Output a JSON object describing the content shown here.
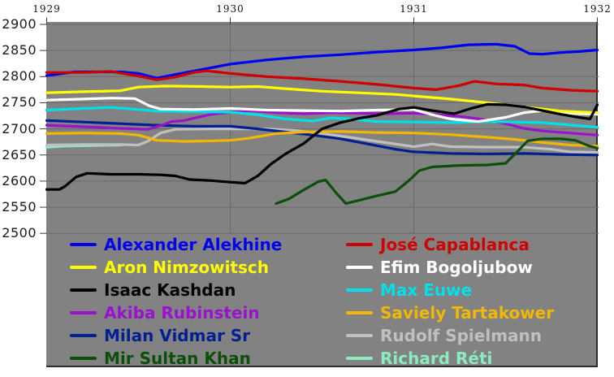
{
  "chart_data": {
    "type": "line",
    "title": "",
    "x_axis": {
      "min": 1929,
      "max": 1932,
      "ticks": [
        "1929",
        "1930",
        "1931",
        "1932"
      ]
    },
    "y_axis": {
      "min": 2500,
      "max": 2900,
      "tick_step": 50,
      "ticks": [
        "2900",
        "2850",
        "2800",
        "2750",
        "2700",
        "2650",
        "2600",
        "2550",
        "2500"
      ]
    },
    "grid": true,
    "colors": {
      "plot_background": "#828282",
      "gridline": "#6a6a6a",
      "border": "#2b2b2b",
      "axis_text": "#1b1b1b"
    },
    "legend": {
      "position": "bottom-inside",
      "left_column": [
        "Alexander Alekhine",
        "Aron Nimzowitsch",
        "Isaac Kashdan",
        "Akiba Rubinstein",
        "Milan Vidmar Sr",
        "Mir Sultan Khan"
      ],
      "right_column": [
        "José Capablanca",
        "Efim Bogoljubow",
        "Max Euwe",
        "Saviely Tartakower",
        "Rudolf Spielmann",
        "Richard Réti"
      ]
    },
    "draw_order": [
      "Richard Réti",
      "Rudolf Spielmann",
      "Milan Vidmar Sr",
      "Saviely Tartakower",
      "Akiba Rubinstein",
      "Max Euwe",
      "Efim Bogoljubow",
      "Aron Nimzowitsch",
      "Mir Sultan Khan",
      "Isaac Kashdan",
      "Alexander Alekhine",
      "José Capablanca"
    ],
    "series": [
      {
        "name": "Alexander Alekhine",
        "color": "#0000EE",
        "points": [
          [
            1929.0,
            2802
          ],
          [
            1929.15,
            2809
          ],
          [
            1929.4,
            2809
          ],
          [
            1929.5,
            2806
          ],
          [
            1929.6,
            2797
          ],
          [
            1929.7,
            2804
          ],
          [
            1929.85,
            2814
          ],
          [
            1930.0,
            2824
          ],
          [
            1930.2,
            2832
          ],
          [
            1930.4,
            2838
          ],
          [
            1930.6,
            2842
          ],
          [
            1930.8,
            2847
          ],
          [
            1931.0,
            2851
          ],
          [
            1931.15,
            2855
          ],
          [
            1931.3,
            2861
          ],
          [
            1931.45,
            2862
          ],
          [
            1931.55,
            2858
          ],
          [
            1931.63,
            2844
          ],
          [
            1931.7,
            2843
          ],
          [
            1931.8,
            2846
          ],
          [
            1931.9,
            2848
          ],
          [
            1932.0,
            2851
          ]
        ]
      },
      {
        "name": "José Capablanca",
        "color": "#CE0000",
        "points": [
          [
            1929.0,
            2808
          ],
          [
            1929.2,
            2808
          ],
          [
            1929.35,
            2810
          ],
          [
            1929.5,
            2801
          ],
          [
            1929.6,
            2794
          ],
          [
            1929.7,
            2799
          ],
          [
            1929.8,
            2808
          ],
          [
            1929.87,
            2811
          ],
          [
            1930.0,
            2806
          ],
          [
            1930.2,
            2800
          ],
          [
            1930.4,
            2796
          ],
          [
            1930.6,
            2791
          ],
          [
            1930.8,
            2785
          ],
          [
            1931.0,
            2778
          ],
          [
            1931.12,
            2775
          ],
          [
            1931.25,
            2783
          ],
          [
            1931.33,
            2791
          ],
          [
            1931.45,
            2786
          ],
          [
            1931.6,
            2784
          ],
          [
            1931.7,
            2778
          ],
          [
            1931.85,
            2774
          ],
          [
            1932.0,
            2772
          ]
        ]
      },
      {
        "name": "Aron Nimzowitsch",
        "color": "#FFFF00",
        "points": [
          [
            1929.0,
            2769
          ],
          [
            1929.2,
            2771
          ],
          [
            1929.4,
            2773
          ],
          [
            1929.5,
            2780
          ],
          [
            1929.65,
            2782
          ],
          [
            1929.85,
            2781
          ],
          [
            1930.0,
            2780
          ],
          [
            1930.15,
            2781
          ],
          [
            1930.3,
            2777
          ],
          [
            1930.5,
            2772
          ],
          [
            1930.7,
            2769
          ],
          [
            1930.9,
            2766
          ],
          [
            1931.0,
            2763
          ],
          [
            1931.2,
            2757
          ],
          [
            1931.4,
            2750
          ],
          [
            1931.6,
            2742
          ],
          [
            1931.8,
            2734
          ],
          [
            1932.0,
            2731
          ]
        ]
      },
      {
        "name": "Efim Bogoljubow",
        "color": "#FFFFFF",
        "points": [
          [
            1929.0,
            2755
          ],
          [
            1929.2,
            2757
          ],
          [
            1929.35,
            2759
          ],
          [
            1929.48,
            2758
          ],
          [
            1929.56,
            2744
          ],
          [
            1929.62,
            2738
          ],
          [
            1929.8,
            2737
          ],
          [
            1930.0,
            2739
          ],
          [
            1930.2,
            2736
          ],
          [
            1930.4,
            2735
          ],
          [
            1930.6,
            2734
          ],
          [
            1930.8,
            2736
          ],
          [
            1931.0,
            2737
          ],
          [
            1931.1,
            2727
          ],
          [
            1931.2,
            2719
          ],
          [
            1931.35,
            2714
          ],
          [
            1931.5,
            2722
          ],
          [
            1931.6,
            2731
          ],
          [
            1931.7,
            2735
          ],
          [
            1931.8,
            2730
          ],
          [
            1932.0,
            2728
          ]
        ]
      },
      {
        "name": "Isaac Kashdan",
        "color": "#000000",
        "points": [
          [
            1929.0,
            2584
          ],
          [
            1929.07,
            2584
          ],
          [
            1929.1,
            2590
          ],
          [
            1929.16,
            2608
          ],
          [
            1929.22,
            2615
          ],
          [
            1929.35,
            2613
          ],
          [
            1929.5,
            2613
          ],
          [
            1929.62,
            2612
          ],
          [
            1929.7,
            2610
          ],
          [
            1929.78,
            2603
          ],
          [
            1929.9,
            2601
          ],
          [
            1930.0,
            2598
          ],
          [
            1930.08,
            2596
          ],
          [
            1930.15,
            2610
          ],
          [
            1930.22,
            2632
          ],
          [
            1930.3,
            2652
          ],
          [
            1930.4,
            2672
          ],
          [
            1930.5,
            2700
          ],
          [
            1930.6,
            2712
          ],
          [
            1930.7,
            2720
          ],
          [
            1930.8,
            2726
          ],
          [
            1930.92,
            2738
          ],
          [
            1931.0,
            2741
          ],
          [
            1931.1,
            2735
          ],
          [
            1931.22,
            2729
          ],
          [
            1931.32,
            2740
          ],
          [
            1931.4,
            2747
          ],
          [
            1931.5,
            2746
          ],
          [
            1931.6,
            2742
          ],
          [
            1931.7,
            2735
          ],
          [
            1931.8,
            2728
          ],
          [
            1931.9,
            2722
          ],
          [
            1931.96,
            2719
          ],
          [
            1932.0,
            2746
          ]
        ]
      },
      {
        "name": "Max Euwe",
        "color": "#00E0E8",
        "points": [
          [
            1929.0,
            2736
          ],
          [
            1929.2,
            2739
          ],
          [
            1929.35,
            2741
          ],
          [
            1929.5,
            2737
          ],
          [
            1929.6,
            2734
          ],
          [
            1929.8,
            2733
          ],
          [
            1930.0,
            2732
          ],
          [
            1930.15,
            2727
          ],
          [
            1930.3,
            2719
          ],
          [
            1930.45,
            2715
          ],
          [
            1930.55,
            2721
          ],
          [
            1930.65,
            2719
          ],
          [
            1930.8,
            2714
          ],
          [
            1931.0,
            2713
          ],
          [
            1931.2,
            2712
          ],
          [
            1931.4,
            2714
          ],
          [
            1931.55,
            2713
          ],
          [
            1931.7,
            2712
          ],
          [
            1931.8,
            2709
          ],
          [
            1932.0,
            2703
          ]
        ]
      },
      {
        "name": "Akiba Rubinstein",
        "color": "#9912CC",
        "points": [
          [
            1929.0,
            2707
          ],
          [
            1929.2,
            2704
          ],
          [
            1929.4,
            2701
          ],
          [
            1929.55,
            2699
          ],
          [
            1929.63,
            2707
          ],
          [
            1929.68,
            2714
          ],
          [
            1929.75,
            2716
          ],
          [
            1929.82,
            2722
          ],
          [
            1929.9,
            2728
          ],
          [
            1930.0,
            2732
          ],
          [
            1930.1,
            2735
          ],
          [
            1930.25,
            2731
          ],
          [
            1930.4,
            2729
          ],
          [
            1930.55,
            2731
          ],
          [
            1930.7,
            2730
          ],
          [
            1930.85,
            2729
          ],
          [
            1931.0,
            2730
          ],
          [
            1931.1,
            2728
          ],
          [
            1931.25,
            2724
          ],
          [
            1931.4,
            2717
          ],
          [
            1931.5,
            2710
          ],
          [
            1931.6,
            2701
          ],
          [
            1931.7,
            2696
          ],
          [
            1931.85,
            2692
          ],
          [
            1932.0,
            2688
          ]
        ]
      },
      {
        "name": "Saviely Tartakower",
        "color": "#F2B705",
        "points": [
          [
            1929.0,
            2691
          ],
          [
            1929.2,
            2692
          ],
          [
            1929.4,
            2691
          ],
          [
            1929.5,
            2688
          ],
          [
            1929.6,
            2678
          ],
          [
            1929.75,
            2676
          ],
          [
            1929.9,
            2677
          ],
          [
            1930.0,
            2678
          ],
          [
            1930.1,
            2682
          ],
          [
            1930.25,
            2691
          ],
          [
            1930.4,
            2694
          ],
          [
            1930.6,
            2695
          ],
          [
            1930.8,
            2693
          ],
          [
            1931.0,
            2692
          ],
          [
            1931.2,
            2689
          ],
          [
            1931.4,
            2684
          ],
          [
            1931.55,
            2680
          ],
          [
            1931.7,
            2674
          ],
          [
            1931.85,
            2669
          ],
          [
            1932.0,
            2667
          ]
        ]
      },
      {
        "name": "Milan Vidmar Sr",
        "color": "#002090",
        "points": [
          [
            1929.0,
            2716
          ],
          [
            1929.2,
            2713
          ],
          [
            1929.4,
            2710
          ],
          [
            1929.6,
            2707
          ],
          [
            1929.8,
            2705
          ],
          [
            1930.0,
            2705
          ],
          [
            1930.15,
            2700
          ],
          [
            1930.3,
            2694
          ],
          [
            1930.45,
            2688
          ],
          [
            1930.6,
            2681
          ],
          [
            1930.75,
            2671
          ],
          [
            1930.9,
            2661
          ],
          [
            1931.0,
            2656
          ],
          [
            1931.2,
            2653
          ],
          [
            1931.4,
            2652
          ],
          [
            1931.6,
            2653
          ],
          [
            1931.8,
            2651
          ],
          [
            1932.0,
            2650
          ]
        ]
      },
      {
        "name": "Rudolf Spielmann",
        "color": "#C0C0C0",
        "points": [
          [
            1929.0,
            2669
          ],
          [
            1929.2,
            2670
          ],
          [
            1929.4,
            2670
          ],
          [
            1929.5,
            2669
          ],
          [
            1929.55,
            2676
          ],
          [
            1929.62,
            2692
          ],
          [
            1929.7,
            2699
          ],
          [
            1929.9,
            2700
          ],
          [
            1930.0,
            2700
          ],
          [
            1930.2,
            2700
          ],
          [
            1930.35,
            2697
          ],
          [
            1930.5,
            2691
          ],
          [
            1930.65,
            2684
          ],
          [
            1930.8,
            2676
          ],
          [
            1931.0,
            2666
          ],
          [
            1931.1,
            2671
          ],
          [
            1931.2,
            2666
          ],
          [
            1931.4,
            2665
          ],
          [
            1931.6,
            2665
          ],
          [
            1931.75,
            2661
          ],
          [
            1931.85,
            2656
          ],
          [
            1932.0,
            2655
          ]
        ]
      },
      {
        "name": "Mir Sultan Khan",
        "color": "#0B4F0B",
        "points": [
          [
            1930.25,
            2557
          ],
          [
            1930.32,
            2566
          ],
          [
            1930.4,
            2583
          ],
          [
            1930.48,
            2599
          ],
          [
            1930.52,
            2602
          ],
          [
            1930.58,
            2576
          ],
          [
            1930.63,
            2557
          ],
          [
            1930.7,
            2563
          ],
          [
            1930.8,
            2572
          ],
          [
            1930.9,
            2580
          ],
          [
            1930.97,
            2600
          ],
          [
            1931.03,
            2620
          ],
          [
            1931.1,
            2627
          ],
          [
            1931.25,
            2630
          ],
          [
            1931.4,
            2631
          ],
          [
            1931.5,
            2634
          ],
          [
            1931.56,
            2655
          ],
          [
            1931.62,
            2677
          ],
          [
            1931.7,
            2681
          ],
          [
            1931.8,
            2681
          ],
          [
            1931.88,
            2678
          ],
          [
            1931.95,
            2668
          ],
          [
            1932.0,
            2663
          ]
        ]
      },
      {
        "name": "Richard Réti",
        "color": "#8CEBBE",
        "points": [
          [
            1929.0,
            2665
          ],
          [
            1929.1,
            2667
          ],
          [
            1929.25,
            2668
          ],
          [
            1929.41,
            2669
          ]
        ]
      }
    ]
  }
}
